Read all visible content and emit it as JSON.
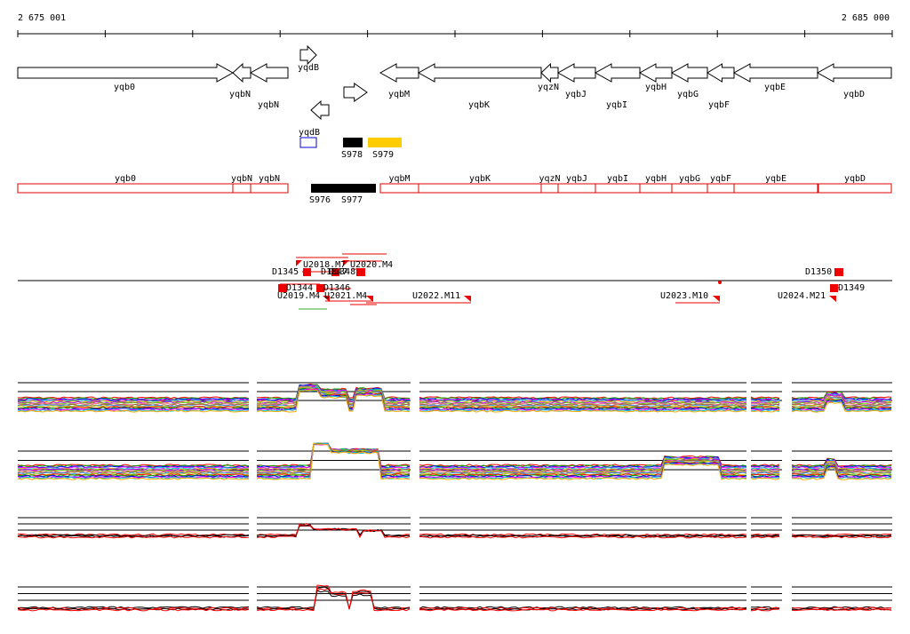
{
  "coords": {
    "start": "2 675 001",
    "end": "2 685 000"
  },
  "genes_top": [
    {
      "id": "yqb0",
      "label": "yqb0",
      "strand": "plus"
    },
    {
      "id": "yqbN1",
      "label": "yqbN",
      "strand": "minus"
    },
    {
      "id": "yqbN2",
      "label": "yqbN",
      "strand": "minus"
    },
    {
      "id": "yqdB1",
      "label": "yqdB",
      "strand": "plus"
    },
    {
      "id": "yqdB2",
      "label": "yqdB",
      "strand": "minus"
    },
    {
      "id": "rgene",
      "label": "",
      "strand": "plus"
    },
    {
      "id": "yqbM",
      "label": "yqbM",
      "strand": "minus"
    },
    {
      "id": "yqbK",
      "label": "yqbK",
      "strand": "minus"
    },
    {
      "id": "yqzN",
      "label": "yqzN",
      "strand": "minus"
    },
    {
      "id": "yqbJ",
      "label": "yqbJ",
      "strand": "minus"
    },
    {
      "id": "yqbI",
      "label": "yqbI",
      "strand": "minus"
    },
    {
      "id": "yqbH",
      "label": "yqbH",
      "strand": "minus"
    },
    {
      "id": "yqbG",
      "label": "yqbG",
      "strand": "minus"
    },
    {
      "id": "yqbF",
      "label": "yqbF",
      "strand": "minus"
    },
    {
      "id": "yqbE",
      "label": "yqbE",
      "strand": "minus"
    },
    {
      "id": "yqbD",
      "label": "yqbD",
      "strand": "minus"
    }
  ],
  "features": [
    "S978",
    "S979",
    "S976",
    "S977"
  ],
  "genes_bottom": [
    "yqb0",
    "yqbN",
    "yqbN",
    "yqbM",
    "yqbK",
    "yqzN",
    "yqbJ",
    "yqbI",
    "yqbH",
    "yqbG",
    "yqbF",
    "yqbE",
    "yqbD"
  ],
  "elements_top": [
    "D1345",
    "U2018.M7",
    "D1347",
    "D1348",
    "U2020.M4",
    "D1350"
  ],
  "elements_bottom": [
    "D1344",
    "D1346",
    "U2019.M4",
    "U2021.M4",
    "U2022.M11",
    "U2023.M10",
    "U2024.M21",
    "D1349"
  ],
  "colors": {
    "gene_outline": "#000000",
    "gene_model": "#dd0000",
    "feature_black": "#000000",
    "feature_yellow": "#ffcc00",
    "feature_blue": "#0000cc",
    "mark": "#ee0000"
  }
}
